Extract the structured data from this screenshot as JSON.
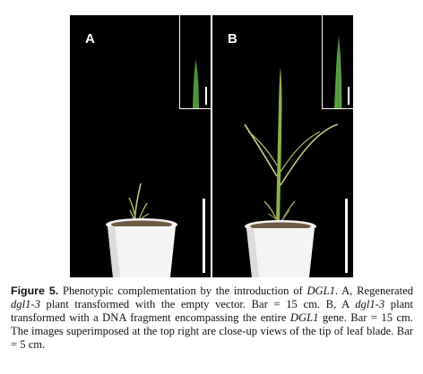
{
  "panels": [
    {
      "letter": "A"
    },
    {
      "letter": "B"
    }
  ],
  "caption": {
    "label": "Figure 5.",
    "t1": "Phenotypic complementation by the introduction of",
    "gene1": "DGL1",
    "t2": ". A, Regenerated",
    "mut1": "dgl1-3",
    "t3": "plant transformed with the empty vector. Bar = 15 cm. B, A",
    "mut2": "dgl1-3",
    "t4": "plant transformed with a DNA fragment encompassing the entire",
    "gene2": "DGL1",
    "t5": "gene. Bar = 15 cm. The images superimposed at the top right are close-up views of the tip of leaf blade. Bar = 5 cm."
  }
}
